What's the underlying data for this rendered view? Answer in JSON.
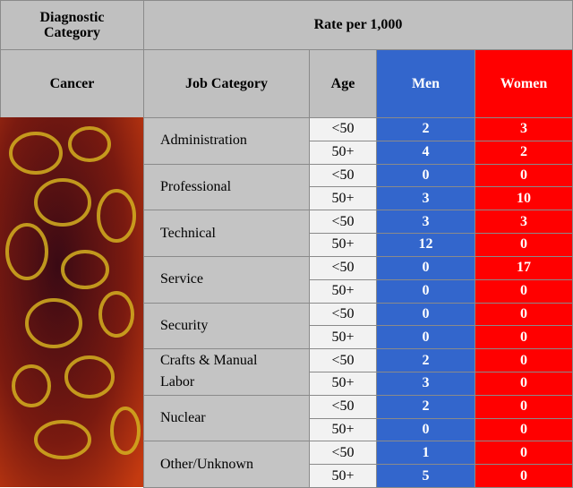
{
  "header": {
    "diagnostic_category": "Diagnostic Category",
    "rate": "Rate per 1,000",
    "cancer": "Cancer",
    "job_category": "Job Category",
    "age": "Age",
    "men": "Men",
    "women": "Women"
  },
  "table": {
    "rows": [
      {
        "job": "Administration",
        "ages": [
          {
            "age": "<50",
            "men": 2,
            "women": 3
          },
          {
            "age": "50+",
            "men": 4,
            "women": 2
          }
        ]
      },
      {
        "job": "Professional",
        "ages": [
          {
            "age": "<50",
            "men": 0,
            "women": 0
          },
          {
            "age": "50+",
            "men": 3,
            "women": 10
          }
        ]
      },
      {
        "job": "Technical",
        "ages": [
          {
            "age": "<50",
            "men": 3,
            "women": 3
          },
          {
            "age": "50+",
            "men": 12,
            "women": 0
          }
        ]
      },
      {
        "job": "Service",
        "ages": [
          {
            "age": "<50",
            "men": 0,
            "women": 17
          },
          {
            "age": "50+",
            "men": 0,
            "women": 0
          }
        ]
      },
      {
        "job": "Security",
        "ages": [
          {
            "age": "<50",
            "men": 0,
            "women": 0
          },
          {
            "age": "50+",
            "men": 0,
            "women": 0
          }
        ]
      },
      {
        "job": "Crafts & Manual Labor",
        "ages": [
          {
            "age": "<50",
            "men": 2,
            "women": 0
          },
          {
            "age": "50+",
            "men": 3,
            "women": 0
          }
        ]
      },
      {
        "job": "Nuclear",
        "ages": [
          {
            "age": "<50",
            "men": 2,
            "women": 0
          },
          {
            "age": "50+",
            "men": 0,
            "women": 0
          }
        ]
      },
      {
        "job": "Other/Unknown",
        "ages": [
          {
            "age": "<50",
            "men": 1,
            "women": 0
          },
          {
            "age": "50+",
            "men": 5,
            "women": 0
          }
        ]
      }
    ]
  }
}
